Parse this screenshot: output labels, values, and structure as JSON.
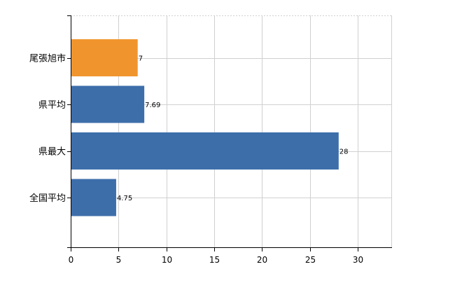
{
  "chart_data": {
    "type": "bar",
    "orientation": "horizontal",
    "title": "",
    "xlabel": "",
    "ylabel": "",
    "categories": [
      "尾張旭市",
      "県平均",
      "県最大",
      "全国平均"
    ],
    "values": [
      7,
      7.69,
      28,
      4.75
    ],
    "value_labels": [
      "7",
      "7.69",
      "28",
      "4.75"
    ],
    "bar_colors": [
      "#f0952e",
      "#3d6eaa",
      "#3d6eaa",
      "#3d6eaa"
    ],
    "xlim": [
      0,
      33.5
    ],
    "xticks": [
      0,
      5,
      10,
      15,
      20,
      25,
      30
    ],
    "xtick_labels": [
      "0",
      "5",
      "10",
      "15",
      "20",
      "25",
      "30"
    ],
    "grid": true,
    "legend": "none"
  },
  "colors": {
    "highlight": "#f0952e",
    "default_bar": "#3d6eaa",
    "grid": "#d0d0d0",
    "axis": "#000000",
    "text": "#000000"
  }
}
